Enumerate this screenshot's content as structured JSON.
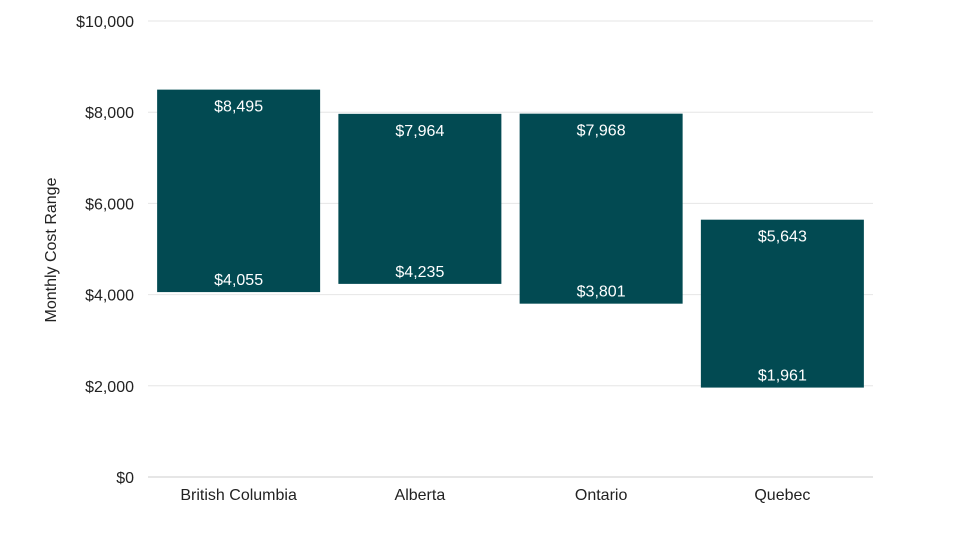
{
  "chart_data": {
    "type": "bar",
    "subtype": "floating-range",
    "title": "",
    "xlabel": "",
    "ylabel": "Monthly Cost Range",
    "categories": [
      "British Columbia",
      "Alberta",
      "Ontario",
      "Quebec"
    ],
    "low": [
      4055,
      4235,
      3801,
      1961
    ],
    "high": [
      8495,
      7964,
      7968,
      5643
    ],
    "low_labels": [
      "$4,055",
      "$4,235",
      "$3,801",
      "$1,961"
    ],
    "high_labels": [
      "$8,495",
      "$7,964",
      "$7,968",
      "$5,643"
    ],
    "ylim": [
      0,
      10000
    ],
    "yticks": [
      0,
      2000,
      4000,
      6000,
      8000,
      10000
    ],
    "ytick_labels": [
      "$0",
      "$2,000",
      "$4,000",
      "$6,000",
      "$8,000",
      "$10,000"
    ],
    "grid": true,
    "legend": "none",
    "colors": {
      "bar": "#024a52"
    }
  }
}
